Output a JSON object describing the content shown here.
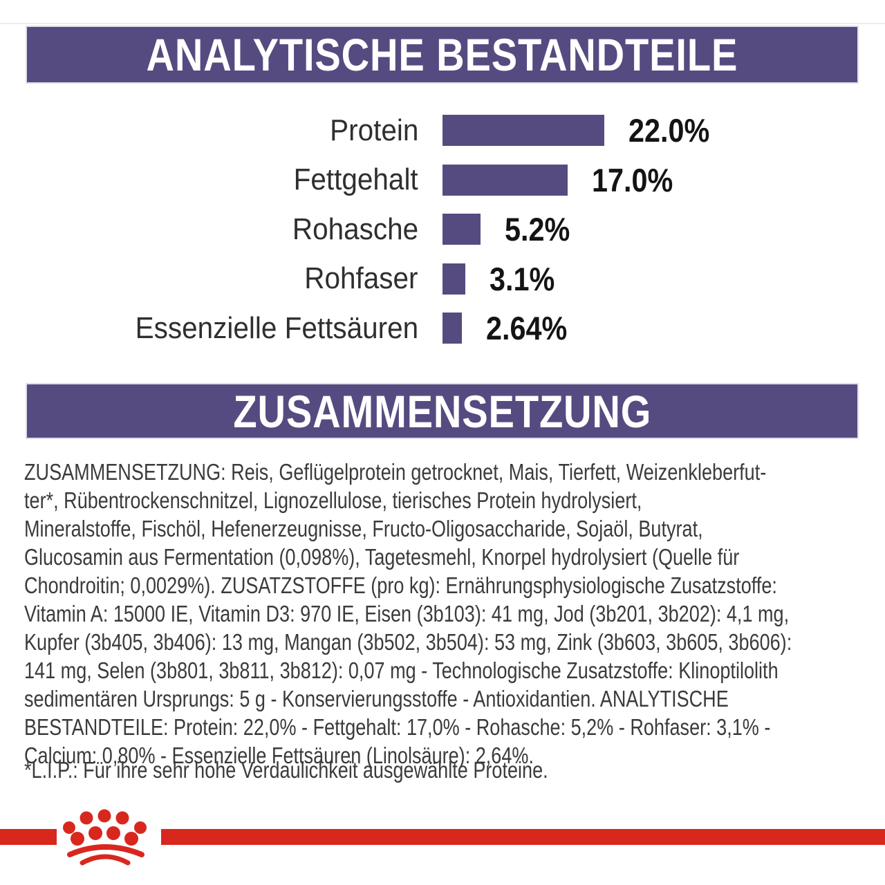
{
  "sections": {
    "analytical": {
      "title": "ANALYTISCHE BESTANDTEILE"
    },
    "composition": {
      "title": "ZUSAMMENSETZUNG"
    }
  },
  "chart_data": {
    "type": "bar",
    "orientation": "horizontal",
    "title": "ANALYTISCHE BESTANDTEILE",
    "categories": [
      "Protein",
      "Fettgehalt",
      "Rohasche",
      "Rohfaser",
      "Essenzielle Fettsäuren"
    ],
    "values": [
      22.0,
      17.0,
      5.2,
      3.1,
      2.64
    ],
    "value_labels": [
      "22.0%",
      "17.0%",
      "5.2%",
      "3.1%",
      "2.64%"
    ],
    "unit": "%",
    "xlim": [
      0,
      24
    ],
    "bar_color": "#564B80",
    "grid": false,
    "legend": false
  },
  "composition": {
    "lines": [
      "ZUSAMMENSETZUNG: Reis, Geflügelprotein getrocknet, Mais, Tierfett, Weizenkleberfut-",
      "ter*, Rübentrockenschnitzel, Lignozellulose, tierisches Protein hydrolysiert,",
      "Mineralstoffe, Fischöl, Hefenerzeugnisse, Fructo-Oligosaccharide, Sojaöl, Butyrat,",
      "Glucosamin aus Fermentation (0,098%), Tagetesmehl, Knorpel hydrolysiert (Quelle für",
      "Chondroitin; 0,0029%). ZUSATZSTOFFE (pro kg): Ernährungsphysiologische Zusatzstoffe:",
      "Vitamin A: 15000 IE, Vitamin D3: 970 IE, Eisen (3b103): 41 mg, Jod (3b201, 3b202): 4,1 mg,",
      "Kupfer (3b405, 3b406): 13 mg, Mangan (3b502, 3b504): 53 mg, Zink (3b603, 3b605, 3b606):",
      "141 mg, Selen (3b801, 3b811, 3b812): 0,07 mg - Technologische Zusatzstoffe: Klinoptilolith",
      "sedimentären Ursprungs: 5 g - Konservierungsstoffe - Antioxidantien. ANALYTISCHE",
      "BESTANDTEILE: Protein: 22,0% - Fettgehalt: 17,0% - Rohasche: 5,2% - Rohfaser: 3,1% -",
      "Calcium: 0,80% - Essenzielle Fettsäuren (Linolsäure): 2,64%."
    ]
  },
  "footnote": "*L.I.P.: Für ihre sehr hohe Verdaulichkeit ausgewählte Proteine.",
  "footer": {
    "logo_icon": "crown-logo-icon",
    "stripe_color": "#D8281E"
  },
  "colors": {
    "purple": "#564B80",
    "red": "#D8281E",
    "text": "#3B3B39"
  }
}
